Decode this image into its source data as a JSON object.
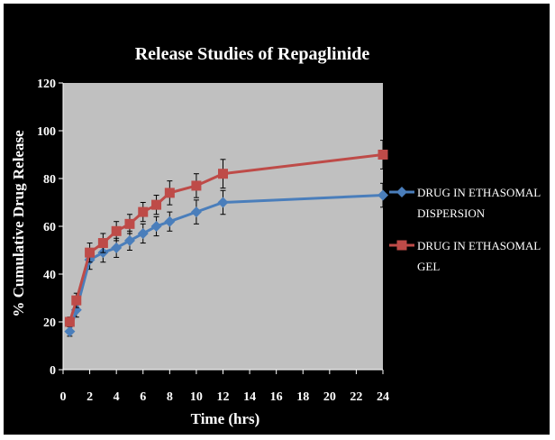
{
  "chart_data": {
    "type": "line",
    "title": "Release Studies of Repaglinide",
    "xlabel": "Time (hrs)",
    "ylabel": "% Cumulative Drug Release",
    "xlim": [
      0,
      24
    ],
    "ylim": [
      0,
      120
    ],
    "x_ticks": [
      0,
      2,
      4,
      6,
      8,
      10,
      12,
      14,
      16,
      18,
      20,
      22,
      24
    ],
    "y_ticks": [
      0,
      20,
      40,
      60,
      80,
      100,
      120
    ],
    "x_tick_labels": [
      "0",
      "2",
      "4",
      "6",
      "8",
      "10",
      "12",
      "14",
      "16",
      "18",
      "20",
      "22",
      "24"
    ],
    "y_tick_labels": [
      "0",
      "20",
      "40",
      "60",
      "80",
      "100",
      "120"
    ],
    "grid": false,
    "legend_position": "right",
    "plot_background": "#c0c0c0",
    "background": "#000000",
    "series": [
      {
        "name": "DRUG IN ETHASOMAL DISPERSION",
        "legend_lines": [
          "DRUG IN ETHASOMAL",
          "DISPERSION"
        ],
        "color": "#4a7ebb",
        "marker": "diamond",
        "x": [
          0.5,
          1,
          2,
          3,
          4,
          5,
          6,
          7,
          8,
          10,
          12,
          24
        ],
        "y": [
          16,
          25,
          46,
          49,
          51,
          54,
          57,
          60,
          62,
          66,
          70,
          73
        ],
        "error": [
          2,
          3,
          4,
          4,
          4,
          4,
          4,
          4,
          4,
          5,
          5,
          5
        ]
      },
      {
        "name": "DRUG IN ETHASOMAL GEL",
        "legend_lines": [
          "DRUG IN ETHASOMAL",
          "GEL"
        ],
        "color": "#be4b48",
        "marker": "square",
        "x": [
          0.5,
          1,
          2,
          3,
          4,
          5,
          6,
          7,
          8,
          10,
          12,
          24
        ],
        "y": [
          20,
          29,
          49,
          53,
          58,
          61,
          66,
          69,
          74,
          77,
          82,
          90
        ],
        "error": [
          2,
          3,
          4,
          4,
          4,
          4,
          4,
          4,
          5,
          5,
          6,
          6
        ]
      }
    ]
  }
}
